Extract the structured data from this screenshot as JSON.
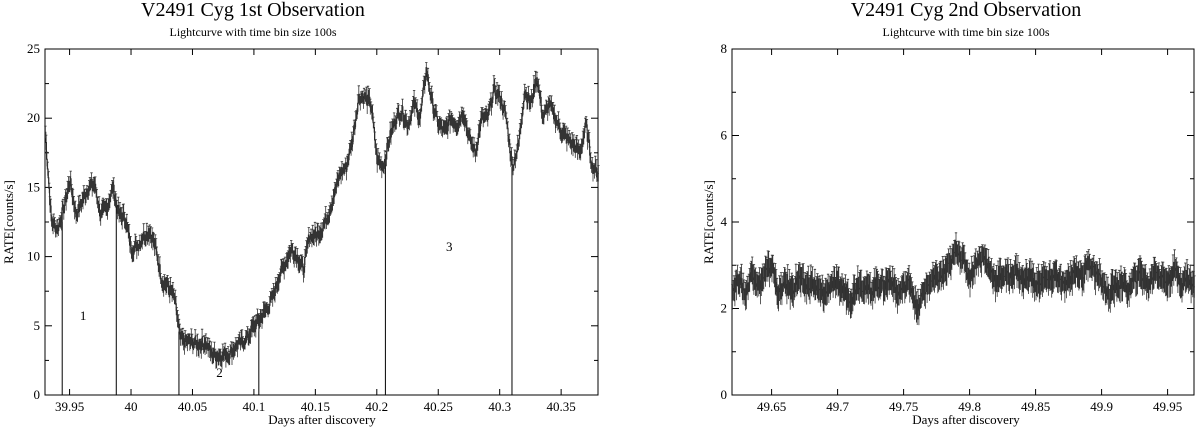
{
  "chart_data": [
    {
      "type": "line",
      "title": "V2491 Cyg 1st Observation",
      "subtitle": "Lightcurve with time bin size 100s",
      "xlabel": "Days after discovery",
      "ylabel": "RATE[counts/s]",
      "xlim": [
        39.93,
        40.38
      ],
      "ylim": [
        0,
        25
      ],
      "xticks": [
        "39.95",
        "40",
        "40.05",
        "40.1",
        "40.15",
        "40.2",
        "40.25",
        "40.3",
        "40.35"
      ],
      "xtick_values": [
        39.95,
        40.0,
        40.05,
        40.1,
        40.15,
        40.2,
        40.25,
        40.3,
        40.35
      ],
      "yticks": [
        "0",
        "5",
        "10",
        "15",
        "20",
        "25"
      ],
      "ytick_values": [
        0,
        5,
        10,
        15,
        20,
        25
      ],
      "error_bars": true,
      "grid": false,
      "series": [
        {
          "x": [
            39.93,
            39.935,
            39.94,
            39.945,
            39.95,
            39.955,
            39.96,
            39.965,
            39.97,
            39.975,
            39.98,
            39.985,
            39.99,
            39.995,
            40.0,
            40.005,
            40.01,
            40.015,
            40.02,
            40.025,
            40.03,
            40.035,
            40.04,
            40.045,
            40.05,
            40.055,
            40.06,
            40.065,
            40.07,
            40.075,
            40.08,
            40.085,
            40.09,
            40.095,
            40.1,
            40.105,
            40.11,
            40.115,
            40.12,
            40.125,
            40.13,
            40.135,
            40.14,
            40.145,
            40.15,
            40.155,
            40.16,
            40.165,
            40.17,
            40.175,
            40.18,
            40.185,
            40.19,
            40.195,
            40.2,
            40.205,
            40.21,
            40.215,
            40.22,
            40.225,
            40.23,
            40.235,
            40.24,
            40.245,
            40.25,
            40.255,
            40.26,
            40.265,
            40.27,
            40.275,
            40.28,
            40.285,
            40.29,
            40.295,
            40.3,
            40.305,
            40.31,
            40.315,
            40.32,
            40.325,
            40.33,
            40.335,
            40.34,
            40.345,
            40.35,
            40.355,
            40.36,
            40.365,
            40.37,
            40.375,
            40.38
          ],
          "y": [
            19.0,
            12.5,
            12.0,
            13.5,
            15.5,
            13.0,
            14.0,
            15.0,
            15.2,
            13.0,
            13.5,
            15.0,
            13.0,
            12.8,
            10.5,
            10.8,
            11.5,
            11.8,
            10.5,
            8.2,
            7.8,
            7.0,
            4.0,
            3.8,
            3.8,
            3.6,
            3.8,
            3.0,
            2.8,
            2.9,
            3.0,
            3.5,
            3.8,
            4.2,
            5.0,
            5.5,
            6.2,
            7.0,
            8.5,
            9.5,
            10.5,
            10.0,
            9.0,
            11.5,
            11.5,
            12.0,
            13.0,
            14.5,
            16.0,
            16.5,
            18.5,
            21.5,
            21.5,
            21.0,
            17.0,
            16.5,
            18.5,
            20.0,
            20.5,
            19.5,
            21.0,
            20.0,
            23.5,
            21.0,
            19.5,
            19.0,
            20.0,
            19.5,
            20.5,
            18.5,
            17.5,
            20.0,
            20.0,
            22.0,
            21.5,
            20.0,
            16.5,
            18.0,
            22.0,
            21.0,
            23.0,
            20.0,
            21.0,
            20.0,
            19.0,
            18.5,
            18.0,
            17.5,
            19.5,
            16.5,
            16.0
          ]
        }
      ],
      "vlines": [
        39.944,
        39.988,
        40.039,
        40.104,
        40.207,
        40.31
      ],
      "annotations": [
        {
          "text": "1",
          "x": 39.961,
          "y": 5.7
        },
        {
          "text": "2",
          "x": 40.072,
          "y": 1.6
        },
        {
          "text": "3",
          "x": 40.259,
          "y": 10.7
        }
      ]
    },
    {
      "type": "line",
      "title": "V2491 Cyg 2nd Observation",
      "subtitle": "Lightcurve with time bin size 100s",
      "xlabel": "Days after discovery",
      "ylabel": "RATE[counts/s]",
      "xlim": [
        49.62,
        49.97
      ],
      "ylim": [
        0,
        8
      ],
      "xticks": [
        "49.65",
        "49.7",
        "49.75",
        "49.8",
        "49.85",
        "49.9",
        "49.95"
      ],
      "xtick_values": [
        49.65,
        49.7,
        49.75,
        49.8,
        49.85,
        49.9,
        49.95
      ],
      "yticks": [
        "0",
        "2",
        "4",
        "6",
        "8"
      ],
      "ytick_values": [
        0,
        2,
        4,
        6,
        8
      ],
      "error_bars": true,
      "grid": false,
      "series": [
        {
          "x": [
            49.62,
            49.625,
            49.63,
            49.635,
            49.64,
            49.645,
            49.65,
            49.655,
            49.66,
            49.665,
            49.67,
            49.675,
            49.68,
            49.685,
            49.69,
            49.695,
            49.7,
            49.705,
            49.71,
            49.715,
            49.72,
            49.725,
            49.73,
            49.735,
            49.74,
            49.745,
            49.75,
            49.755,
            49.76,
            49.765,
            49.77,
            49.775,
            49.78,
            49.785,
            49.79,
            49.795,
            49.8,
            49.805,
            49.81,
            49.815,
            49.82,
            49.825,
            49.83,
            49.835,
            49.84,
            49.845,
            49.85,
            49.855,
            49.86,
            49.865,
            49.87,
            49.875,
            49.88,
            49.885,
            49.89,
            49.895,
            49.9,
            49.905,
            49.91,
            49.915,
            49.92,
            49.925,
            49.93,
            49.935,
            49.94,
            49.945,
            49.95,
            49.955,
            49.96,
            49.965,
            49.97
          ],
          "y": [
            2.4,
            2.7,
            2.3,
            2.9,
            2.5,
            2.8,
            3.0,
            2.3,
            2.6,
            2.4,
            2.7,
            2.5,
            2.6,
            2.4,
            2.3,
            2.6,
            2.5,
            2.4,
            2.2,
            2.6,
            2.5,
            2.4,
            2.6,
            2.5,
            2.7,
            2.3,
            2.5,
            2.6,
            1.9,
            2.4,
            2.6,
            2.7,
            2.8,
            3.0,
            3.4,
            3.1,
            2.7,
            3.1,
            3.2,
            2.9,
            2.6,
            2.8,
            2.7,
            2.9,
            2.6,
            2.8,
            2.5,
            2.7,
            2.6,
            2.8,
            2.5,
            2.6,
            2.9,
            2.7,
            3.1,
            2.8,
            2.6,
            2.3,
            2.5,
            2.6,
            2.4,
            2.7,
            2.8,
            2.5,
            2.9,
            2.7,
            2.6,
            2.9,
            2.6,
            2.7,
            2.5
          ]
        }
      ]
    }
  ]
}
